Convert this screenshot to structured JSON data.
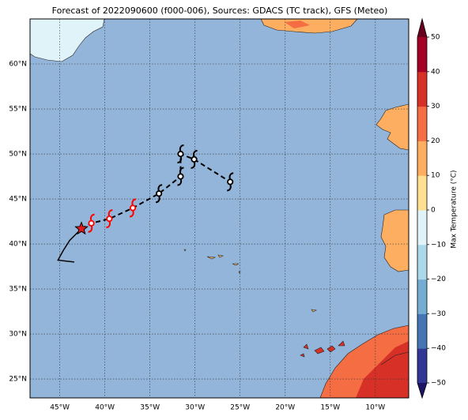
{
  "title": "Forecast of 2022090600 (f000-006), Sources: GDACS (TC track), GFS (Meteo)",
  "map": {
    "xlim": [
      -48.3,
      -6.3
    ],
    "ylim": [
      22.9,
      65.0
    ],
    "ocean_color": "#93b5d9",
    "grid": true,
    "xticks": [
      {
        "value": -45,
        "label": "45°W"
      },
      {
        "value": -40,
        "label": "40°W"
      },
      {
        "value": -35,
        "label": "35°W"
      },
      {
        "value": -30,
        "label": "30°W"
      },
      {
        "value": -25,
        "label": "25°W"
      },
      {
        "value": -20,
        "label": "20°W"
      },
      {
        "value": -15,
        "label": "15°W"
      },
      {
        "value": -10,
        "label": "10°W"
      }
    ],
    "yticks": [
      {
        "value": 25,
        "label": "25°N"
      },
      {
        "value": 30,
        "label": "30°N"
      },
      {
        "value": 35,
        "label": "35°N"
      },
      {
        "value": 40,
        "label": "40°N"
      },
      {
        "value": 45,
        "label": "45°N"
      },
      {
        "value": 50,
        "label": "50°N"
      },
      {
        "value": 55,
        "label": "55°N"
      },
      {
        "value": 60,
        "label": "60°N"
      }
    ]
  },
  "colorbar": {
    "label": "Max Temperature (°C)",
    "lim": [
      -50,
      50
    ],
    "ticks": [
      {
        "value": -50,
        "label": "−50"
      },
      {
        "value": -40,
        "label": "−40"
      },
      {
        "value": -30,
        "label": "−30"
      },
      {
        "value": -20,
        "label": "−20"
      },
      {
        "value": -10,
        "label": "−10"
      },
      0,
      10,
      20,
      30,
      40,
      50
    ],
    "colors": [
      "#313695",
      "#4575b4",
      "#74add1",
      "#abd9e9",
      "#e0f3f8",
      "#fee090",
      "#fdae61",
      "#f46d43",
      "#d73027",
      "#a50026"
    ],
    "under_color": "#1b1464",
    "over_color": "#67001f"
  },
  "track": {
    "past": {
      "lon": [
        -42.6,
        -43.9,
        -44.6,
        -45.2,
        -43.4
      ],
      "lat": [
        41.7,
        40.4,
        39.3,
        38.2,
        38.0
      ]
    },
    "current": {
      "lon": -42.6,
      "lat": 41.7
    },
    "forecast": {
      "lon": [
        -41.5,
        -39.5,
        -36.9,
        -34.0,
        -31.6,
        -31.6,
        -30.1,
        -26.1
      ],
      "lat": [
        42.3,
        42.8,
        44.0,
        45.6,
        47.5,
        50.0,
        49.4,
        46.9
      ],
      "colors": [
        "#ff0000",
        "#ff0000",
        "#ff0000",
        "#000000",
        "#000000",
        "#000000",
        "#000000",
        "#000000"
      ]
    }
  }
}
